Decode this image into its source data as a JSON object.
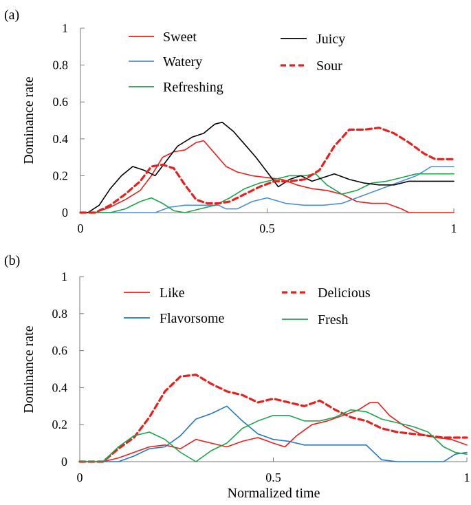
{
  "chart_data": [
    {
      "panel_label": "(a)",
      "type": "line",
      "xlabel": "",
      "ylabel": "Dominance rate",
      "xlim": [
        0,
        1
      ],
      "ylim": [
        0,
        1
      ],
      "xticks": [
        "0",
        "0.5",
        "1"
      ],
      "yticks": [
        "0",
        "0.2",
        "0.4",
        "0.6",
        "0.8",
        "1"
      ],
      "legend_placement": "top-center",
      "series": [
        {
          "name": "Sweet",
          "color": "#e8201c",
          "dashed": false,
          "x": [
            0,
            0.04,
            0.08,
            0.12,
            0.16,
            0.19,
            0.22,
            0.25,
            0.28,
            0.31,
            0.33,
            0.36,
            0.39,
            0.42,
            0.46,
            0.5,
            0.54,
            0.58,
            0.62,
            0.66,
            0.7,
            0.74,
            0.78,
            0.82,
            0.86,
            0.88,
            0.9,
            1
          ],
          "y": [
            0,
            0,
            0.03,
            0.07,
            0.12,
            0.2,
            0.3,
            0.33,
            0.34,
            0.38,
            0.39,
            0.32,
            0.25,
            0.22,
            0.2,
            0.19,
            0.18,
            0.15,
            0.13,
            0.12,
            0.1,
            0.06,
            0.05,
            0.05,
            0.02,
            0,
            0,
            0
          ]
        },
        {
          "name": "Watery",
          "color": "#4a90d9",
          "dashed": false,
          "x": [
            0,
            0.2,
            0.24,
            0.28,
            0.33,
            0.37,
            0.39,
            0.42,
            0.46,
            0.5,
            0.55,
            0.6,
            0.65,
            0.7,
            0.74,
            0.78,
            0.82,
            0.86,
            0.9,
            0.94,
            1
          ],
          "y": [
            0,
            0,
            0.03,
            0.04,
            0.04,
            0.04,
            0.02,
            0.02,
            0.06,
            0.08,
            0.05,
            0.04,
            0.04,
            0.05,
            0.08,
            0.11,
            0.14,
            0.17,
            0.2,
            0.25,
            0.25
          ]
        },
        {
          "name": "Refreshing",
          "color": "#1aa64a",
          "dashed": false,
          "x": [
            0,
            0.08,
            0.12,
            0.16,
            0.19,
            0.22,
            0.25,
            0.28,
            0.32,
            0.36,
            0.4,
            0.44,
            0.48,
            0.52,
            0.56,
            0.6,
            0.63,
            0.66,
            0.7,
            0.74,
            0.78,
            0.82,
            0.86,
            0.9,
            0.94,
            1
          ],
          "y": [
            0,
            0,
            0.02,
            0.06,
            0.08,
            0.05,
            0.01,
            0,
            0.02,
            0.04,
            0.08,
            0.13,
            0.16,
            0.18,
            0.2,
            0.2,
            0.21,
            0.15,
            0.1,
            0.12,
            0.16,
            0.17,
            0.19,
            0.21,
            0.21,
            0.21
          ]
        },
        {
          "name": "Juicy",
          "color": "#000000",
          "dashed": false,
          "x": [
            0,
            0.02,
            0.05,
            0.08,
            0.11,
            0.14,
            0.17,
            0.2,
            0.23,
            0.26,
            0.3,
            0.33,
            0.36,
            0.38,
            0.41,
            0.44,
            0.47,
            0.5,
            0.53,
            0.56,
            0.59,
            0.62,
            0.65,
            0.68,
            0.72,
            0.76,
            0.8,
            0.84,
            0.88,
            1
          ],
          "y": [
            0,
            0,
            0.04,
            0.13,
            0.2,
            0.25,
            0.23,
            0.2,
            0.28,
            0.36,
            0.41,
            0.43,
            0.48,
            0.49,
            0.44,
            0.37,
            0.3,
            0.22,
            0.14,
            0.18,
            0.2,
            0.17,
            0.19,
            0.21,
            0.18,
            0.16,
            0.15,
            0.15,
            0.17,
            0.17
          ]
        },
        {
          "name": "Sour",
          "color": "#e8201c",
          "dashed": true,
          "x": [
            0,
            0.04,
            0.08,
            0.12,
            0.16,
            0.19,
            0.22,
            0.25,
            0.28,
            0.31,
            0.34,
            0.37,
            0.4,
            0.44,
            0.48,
            0.52,
            0.56,
            0.6,
            0.64,
            0.68,
            0.72,
            0.76,
            0.8,
            0.84,
            0.88,
            0.92,
            0.95,
            1
          ],
          "y": [
            0,
            0,
            0.04,
            0.1,
            0.17,
            0.25,
            0.26,
            0.24,
            0.15,
            0.07,
            0.05,
            0.05,
            0.06,
            0.1,
            0.14,
            0.17,
            0.17,
            0.18,
            0.23,
            0.36,
            0.45,
            0.45,
            0.46,
            0.43,
            0.38,
            0.32,
            0.29,
            0.29
          ]
        }
      ]
    },
    {
      "panel_label": "(b)",
      "type": "line",
      "xlabel": "Normalized time",
      "ylabel": "Dominance rate",
      "xlim": [
        0,
        1
      ],
      "ylim": [
        0,
        1
      ],
      "xticks": [
        "0",
        "0.5",
        "1"
      ],
      "yticks": [
        "0",
        "0.2",
        "0.4",
        "0.6",
        "0.8",
        "1"
      ],
      "legend_placement": "top-center",
      "series": [
        {
          "name": "Like",
          "color": "#e8201c",
          "dashed": false,
          "x": [
            0,
            0.06,
            0.1,
            0.14,
            0.18,
            0.22,
            0.26,
            0.3,
            0.34,
            0.38,
            0.42,
            0.46,
            0.5,
            0.53,
            0.56,
            0.6,
            0.64,
            0.68,
            0.72,
            0.75,
            0.77,
            0.8,
            0.84,
            0.88,
            0.92,
            0.96,
            1
          ],
          "y": [
            0,
            0,
            0.02,
            0.05,
            0.08,
            0.09,
            0.07,
            0.12,
            0.1,
            0.08,
            0.11,
            0.13,
            0.1,
            0.08,
            0.14,
            0.2,
            0.22,
            0.25,
            0.28,
            0.32,
            0.32,
            0.25,
            0.19,
            0.15,
            0.13,
            0.12,
            0.09
          ]
        },
        {
          "name": "Flavorsome",
          "color": "#1f78c8",
          "dashed": false,
          "x": [
            0,
            0.1,
            0.14,
            0.18,
            0.22,
            0.26,
            0.3,
            0.34,
            0.38,
            0.42,
            0.46,
            0.5,
            0.54,
            0.58,
            0.62,
            0.66,
            0.7,
            0.74,
            0.78,
            0.82,
            0.86,
            0.9,
            0.94,
            0.97,
            1
          ],
          "y": [
            0,
            0,
            0.03,
            0.07,
            0.08,
            0.14,
            0.23,
            0.26,
            0.3,
            0.22,
            0.15,
            0.12,
            0.11,
            0.09,
            0.09,
            0.09,
            0.09,
            0.09,
            0.01,
            0,
            0,
            0,
            0,
            0.04,
            0.05
          ]
        },
        {
          "name": "Delicious",
          "color": "#e8201c",
          "dashed": true,
          "x": [
            0,
            0.06,
            0.1,
            0.14,
            0.18,
            0.22,
            0.26,
            0.3,
            0.34,
            0.38,
            0.42,
            0.46,
            0.5,
            0.54,
            0.58,
            0.62,
            0.66,
            0.7,
            0.74,
            0.78,
            0.82,
            0.86,
            0.9,
            0.94,
            1
          ],
          "y": [
            0,
            0,
            0.07,
            0.13,
            0.24,
            0.38,
            0.46,
            0.47,
            0.42,
            0.38,
            0.36,
            0.32,
            0.34,
            0.32,
            0.3,
            0.33,
            0.28,
            0.24,
            0.22,
            0.18,
            0.16,
            0.15,
            0.14,
            0.13,
            0.13
          ]
        },
        {
          "name": "Fresh",
          "color": "#1aa64a",
          "dashed": false,
          "x": [
            0,
            0.06,
            0.1,
            0.14,
            0.18,
            0.22,
            0.26,
            0.3,
            0.34,
            0.38,
            0.42,
            0.46,
            0.5,
            0.54,
            0.58,
            0.62,
            0.66,
            0.7,
            0.74,
            0.78,
            0.82,
            0.86,
            0.9,
            0.94,
            0.97,
            1
          ],
          "y": [
            0,
            0,
            0.08,
            0.14,
            0.16,
            0.12,
            0.05,
            0,
            0.06,
            0.1,
            0.18,
            0.22,
            0.25,
            0.25,
            0.22,
            0.22,
            0.24,
            0.28,
            0.27,
            0.23,
            0.21,
            0.19,
            0.16,
            0.08,
            0.05,
            0.04
          ]
        }
      ]
    }
  ]
}
